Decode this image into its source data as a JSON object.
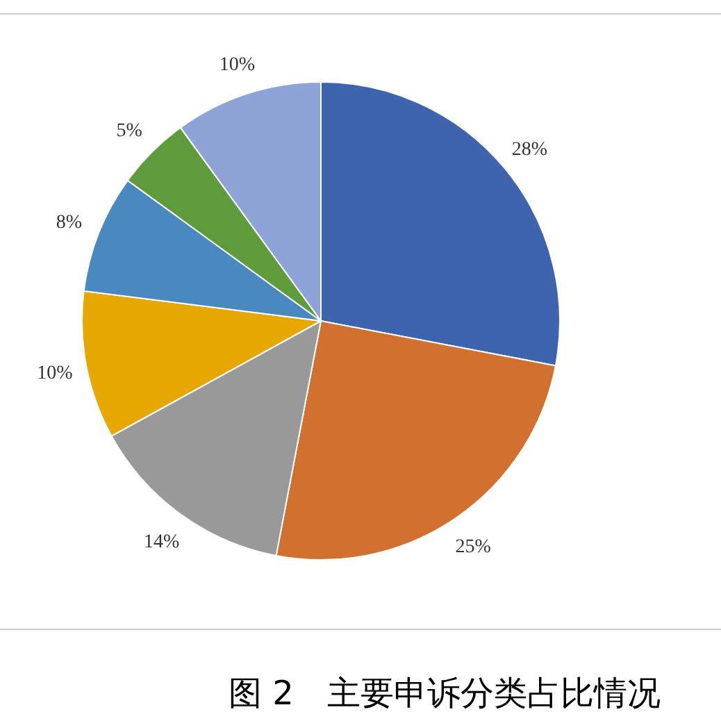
{
  "chart_data": {
    "type": "pie",
    "title": "图 2　主要申诉分类占比情况",
    "categories": [
      null,
      null,
      null,
      null,
      null,
      null,
      null
    ],
    "values": [
      28,
      25,
      14,
      10,
      8,
      5,
      10
    ],
    "value_labels": [
      "28%",
      "25%",
      "14%",
      "10%",
      "8%",
      "5%",
      "10%"
    ],
    "colors": [
      "#3e64ad",
      "#d2702f",
      "#999999",
      "#e6a800",
      "#4a89c0",
      "#5e9c3b",
      "#8fa4d6"
    ]
  }
}
